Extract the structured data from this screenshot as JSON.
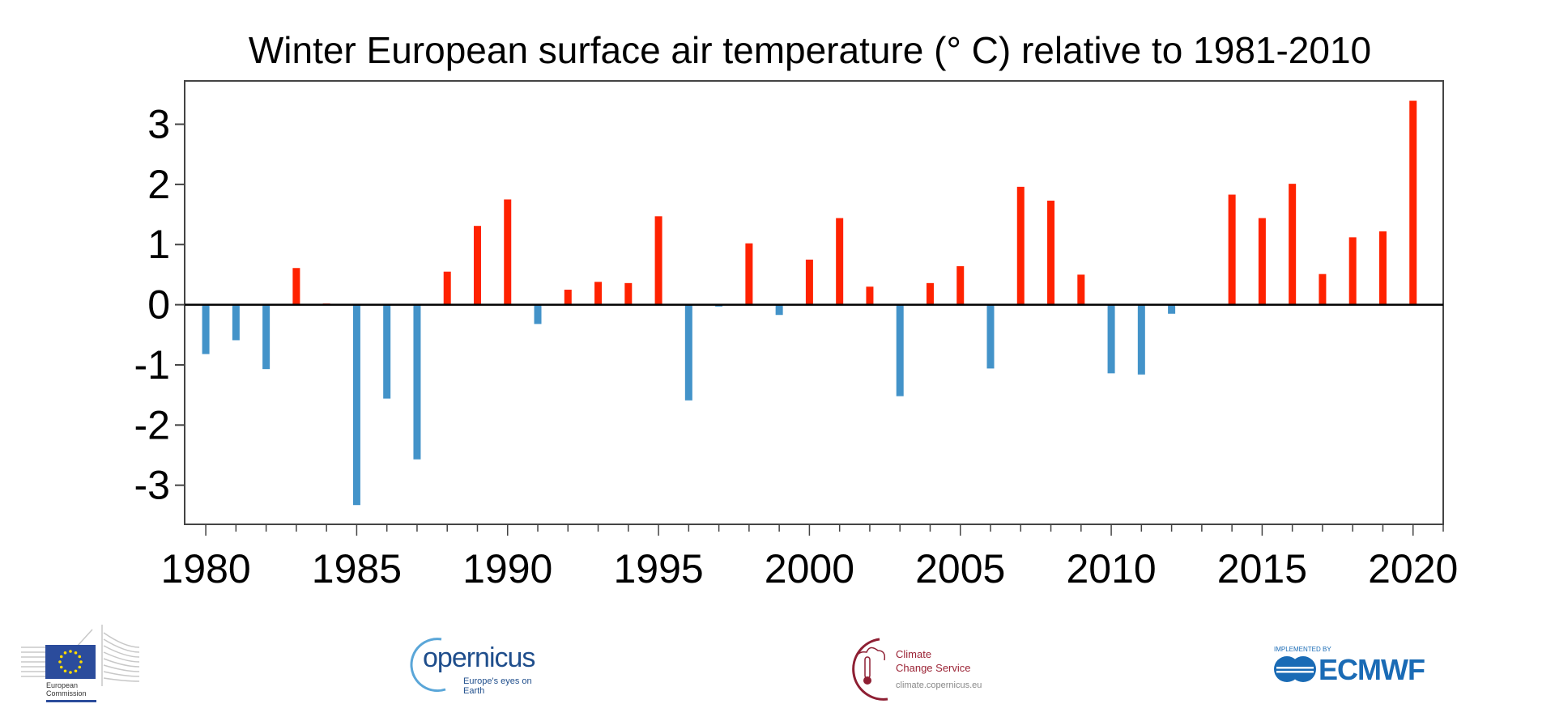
{
  "chart_data": {
    "type": "bar",
    "title": "Winter European surface air temperature (° C) relative to 1981-2010",
    "xlabel": "",
    "ylabel": "",
    "x": [
      1980,
      1981,
      1982,
      1983,
      1984,
      1985,
      1986,
      1987,
      1988,
      1989,
      1990,
      1991,
      1992,
      1993,
      1994,
      1995,
      1996,
      1997,
      1998,
      1999,
      2000,
      2001,
      2002,
      2003,
      2004,
      2005,
      2006,
      2007,
      2008,
      2009,
      2010,
      2011,
      2012,
      2013,
      2014,
      2015,
      2016,
      2017,
      2018,
      2019,
      2020
    ],
    "values": [
      -0.82,
      -0.59,
      -1.07,
      0.61,
      0.02,
      -3.33,
      -1.56,
      -2.57,
      0.55,
      1.31,
      1.75,
      -0.32,
      0.25,
      0.38,
      0.36,
      1.47,
      -1.59,
      -0.03,
      1.02,
      -0.17,
      0.75,
      1.44,
      0.3,
      -1.52,
      0.36,
      0.64,
      -1.06,
      1.96,
      1.73,
      0.5,
      -1.14,
      -1.16,
      -0.15,
      0.0,
      1.83,
      1.44,
      2.01,
      0.51,
      1.12,
      1.22,
      3.39
    ],
    "xlim": [
      1979.3,
      2021.0
    ],
    "ylim": [
      -3.65,
      3.72
    ],
    "xticks": [
      1980,
      1985,
      1990,
      1995,
      2000,
      2005,
      2010,
      2015,
      2020
    ],
    "xtick_labels": [
      "1980",
      "1985",
      "1990",
      "1995",
      "2000",
      "2005",
      "2010",
      "2015",
      "2020"
    ],
    "yticks": [
      -3,
      -2,
      -1,
      0,
      1,
      2,
      3
    ],
    "ytick_labels": [
      "-3",
      "-2",
      "-1",
      "0",
      "1",
      "2",
      "3"
    ],
    "grid": false,
    "legend": "none",
    "colors": {
      "positive": "#ff2200",
      "negative": "#4393c9",
      "axis": "#444444",
      "zero_line": "#000000"
    }
  },
  "footer": {
    "ec": {
      "line1": "European",
      "line2": "Commission"
    },
    "copernicus": {
      "word": "opernicus",
      "tagline": "Europe's eyes on Earth"
    },
    "c3s": {
      "line1": "Climate",
      "line2": "Change Service",
      "url": "climate.copernicus.eu"
    },
    "ecmwf": {
      "implemented": "IMPLEMENTED BY",
      "word": "ECMWF"
    }
  }
}
